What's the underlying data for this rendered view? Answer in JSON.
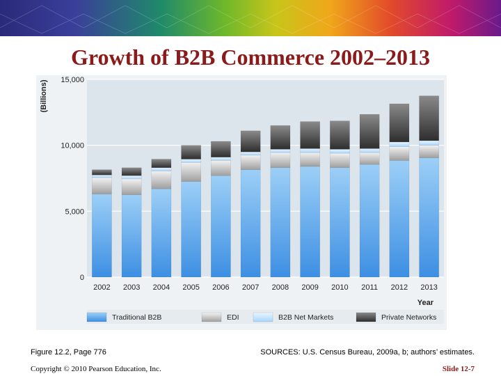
{
  "slide": {
    "title": "Growth of B2B Commerce 2002–2013",
    "figure_ref": "Figure 12.2, Page 776",
    "sources": "SOURCES: U.S. Census Bureau, 2009a, b; authors’ estimates.",
    "copyright": "Copyright © 2010 Pearson Education, Inc.",
    "slide_number": "Slide 12-7"
  },
  "colors": {
    "title": "#8b1a1a",
    "plot_bg": "#dde5ec",
    "traditional_b2b": "#4a9ae8",
    "edi": "#c8c8c8",
    "b2b_net_markets": "#bfe0fb",
    "private_networks": "#3c3c3c"
  },
  "chart_data": {
    "type": "bar",
    "stacked": true,
    "ylabel": "(Billions)",
    "xlabel": "Year",
    "ylim": [
      0,
      15000
    ],
    "yticks": [
      0,
      5000,
      10000,
      15000
    ],
    "ytick_labels": [
      "0",
      "5,000",
      "10,000",
      "15,000"
    ],
    "grid": "horizontal",
    "legend_position": "bottom",
    "categories": [
      "2002",
      "2003",
      "2004",
      "2005",
      "2006",
      "2007",
      "2008",
      "2009",
      "2010",
      "2011",
      "2012",
      "2013"
    ],
    "series": [
      {
        "name": "Traditional B2B",
        "values": [
          6300,
          6250,
          6700,
          7250,
          7700,
          8150,
          8300,
          8400,
          8300,
          8550,
          8850,
          9050
        ]
      },
      {
        "name": "EDI",
        "values": [
          1250,
          1200,
          1350,
          1450,
          1150,
          1100,
          1150,
          1050,
          1100,
          900,
          1050,
          950
        ]
      },
      {
        "name": "B2B Net Markets",
        "values": [
          200,
          250,
          250,
          250,
          250,
          250,
          250,
          300,
          300,
          300,
          350,
          350
        ]
      },
      {
        "name": "Private Networks",
        "values": [
          400,
          600,
          650,
          1050,
          1200,
          1600,
          1800,
          2050,
          2150,
          2600,
          2900,
          3400
        ]
      }
    ]
  }
}
